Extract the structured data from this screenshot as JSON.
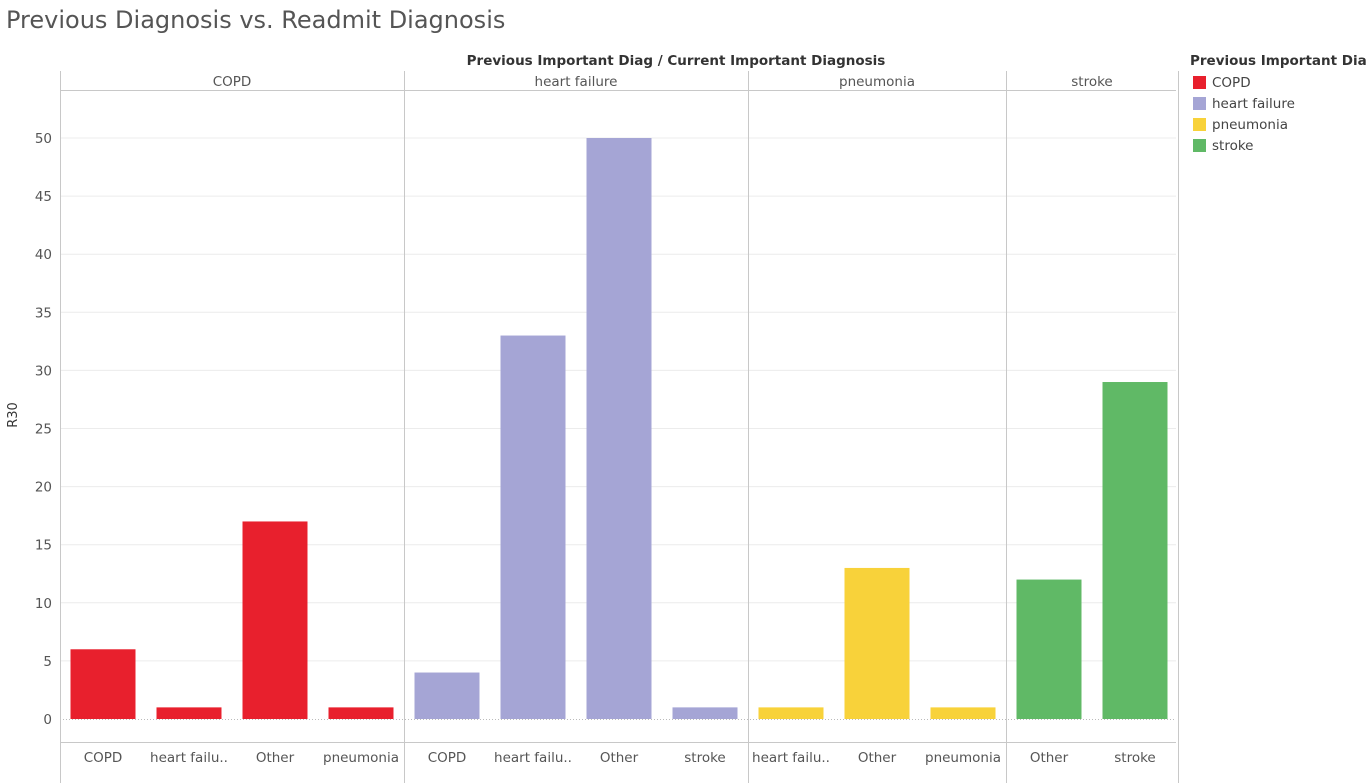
{
  "page": {
    "title": "Previous Diagnosis vs. Readmit Diagnosis"
  },
  "chart_data": {
    "type": "bar",
    "title": "Previous Diagnosis vs. Readmit Diagnosis",
    "xlabel": "Previous Important Diag  /  Current Important Diagnosis",
    "ylabel": "R30",
    "ylim": [
      0,
      54
    ],
    "yticks": [
      0,
      5,
      10,
      15,
      20,
      25,
      30,
      35,
      40,
      45,
      50
    ],
    "grid": true,
    "legend": {
      "title": "Previous Important Diag",
      "placement": "right",
      "items": [
        {
          "label": "COPD",
          "color": "#e8202d"
        },
        {
          "label": "heart failure",
          "color": "#a5a5d5"
        },
        {
          "label": "pneumonia",
          "color": "#f8d23a"
        },
        {
          "label": "stroke",
          "color": "#60b966"
        }
      ]
    },
    "panels": [
      {
        "name": "COPD",
        "color": "#e8202d",
        "categories": [
          "COPD",
          "heart failu..",
          "Other",
          "pneumonia"
        ],
        "values": [
          6,
          1,
          17,
          1
        ]
      },
      {
        "name": "heart failure",
        "color": "#a5a5d5",
        "categories": [
          "COPD",
          "heart failu..",
          "Other",
          "stroke"
        ],
        "values": [
          4,
          33,
          50,
          1
        ]
      },
      {
        "name": "pneumonia",
        "color": "#f8d23a",
        "categories": [
          "heart failu..",
          "Other",
          "pneumonia"
        ],
        "values": [
          1,
          13,
          1
        ]
      },
      {
        "name": "stroke",
        "color": "#60b966",
        "categories": [
          "Other",
          "stroke"
        ],
        "values": [
          12,
          29
        ]
      }
    ]
  }
}
